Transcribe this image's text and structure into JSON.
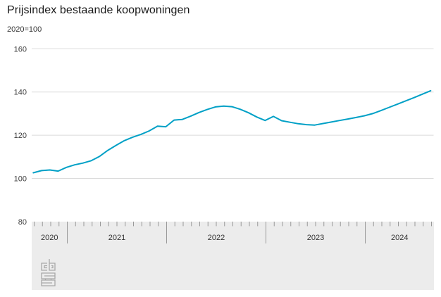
{
  "title": "Prijsindex bestaande koopwoningen",
  "subtitle": "2020=100",
  "footer": {
    "logo_name": "cbs-logo"
  },
  "chart_data": {
    "type": "line",
    "title": "Prijsindex bestaande koopwoningen",
    "subtitle": "2020=100",
    "series_name": "Prijsindex bestaande koopwoningen (2020=100)",
    "x": [
      "2020-09",
      "2020-10",
      "2020-11",
      "2020-12",
      "2021-01",
      "2021-02",
      "2021-03",
      "2021-04",
      "2021-05",
      "2021-06",
      "2021-07",
      "2021-08",
      "2021-09",
      "2021-10",
      "2021-11",
      "2021-12",
      "2022-01",
      "2022-02",
      "2022-03",
      "2022-04",
      "2022-05",
      "2022-06",
      "2022-07",
      "2022-08",
      "2022-09",
      "2022-10",
      "2022-11",
      "2022-12",
      "2023-01",
      "2023-02",
      "2023-03",
      "2023-04",
      "2023-05",
      "2023-06",
      "2023-07",
      "2023-08",
      "2023-09",
      "2023-10",
      "2023-11",
      "2023-12",
      "2024-01",
      "2024-02",
      "2024-03",
      "2024-04",
      "2024-05",
      "2024-06",
      "2024-07",
      "2024-08",
      "2024-09"
    ],
    "values": [
      102.6,
      103.6,
      103.9,
      103.4,
      105.1,
      106.3,
      107.1,
      108.2,
      110.2,
      113.0,
      115.3,
      117.5,
      119.1,
      120.4,
      122.0,
      124.2,
      123.9,
      127.0,
      127.3,
      128.8,
      130.5,
      131.9,
      133.1,
      133.5,
      133.2,
      132.0,
      130.4,
      128.4,
      126.8,
      128.7,
      126.7,
      126.0,
      125.3,
      124.9,
      124.7,
      125.4,
      126.1,
      126.8,
      127.5,
      128.2,
      129.0,
      130.0,
      131.4,
      132.9,
      134.4,
      135.9,
      137.4,
      139.0,
      140.6
    ],
    "ylim": [
      80,
      160
    ],
    "yticks": [
      160,
      140,
      120,
      100,
      80
    ],
    "x_year_labels": [
      "2020",
      "2021",
      "2022",
      "2023",
      "2024"
    ],
    "grid": "horizontal",
    "legend": "none",
    "line_color": "#00a0c6",
    "gridline_color": "#dbdbdb",
    "axis_band_color": "#ececec",
    "tick_color": "#999999"
  }
}
